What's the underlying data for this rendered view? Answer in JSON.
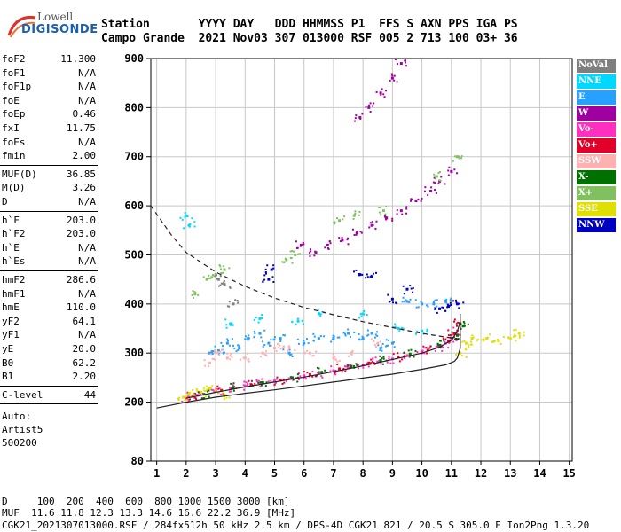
{
  "logo": {
    "line1": "Lowell",
    "line2": "DIGISONDE"
  },
  "header": {
    "line1": "Station       YYYY DAY   DDD HHMMSS P1  FFS S AXN PPS IGA PS",
    "line2": "Campo Grande  2021 Nov03 307 013000 RSF 005 2 713 100 03+ 36"
  },
  "params": [
    {
      "group": [
        {
          "k": "foF2",
          "v": "11.300"
        },
        {
          "k": "foF1",
          "v": "N/A"
        },
        {
          "k": "foF1p",
          "v": "N/A"
        },
        {
          "k": "foE",
          "v": "N/A"
        },
        {
          "k": "foEp",
          "v": "0.46"
        },
        {
          "k": "fxI",
          "v": "11.75"
        },
        {
          "k": "foEs",
          "v": "N/A"
        },
        {
          "k": "fmin",
          "v": "2.00"
        }
      ]
    },
    {
      "group": [
        {
          "k": "MUF(D)",
          "v": "36.85"
        },
        {
          "k": "M(D)",
          "v": "3.26"
        },
        {
          "k": "D",
          "v": "N/A"
        }
      ]
    },
    {
      "group": [
        {
          "k": "h`F",
          "v": "203.0"
        },
        {
          "k": "h`F2",
          "v": "203.0"
        },
        {
          "k": "h`E",
          "v": "N/A"
        },
        {
          "k": "h`Es",
          "v": "N/A"
        }
      ]
    },
    {
      "group": [
        {
          "k": "hmF2",
          "v": "286.6"
        },
        {
          "k": "hmF1",
          "v": "N/A"
        },
        {
          "k": "hmE",
          "v": "110.0"
        },
        {
          "k": "yF2",
          "v": "64.1"
        },
        {
          "k": "yF1",
          "v": "N/A"
        },
        {
          "k": "yE",
          "v": "20.0"
        },
        {
          "k": "B0",
          "v": "62.2"
        },
        {
          "k": "B1",
          "v": "2.20"
        }
      ]
    },
    {
      "group": [
        {
          "k": "C-level",
          "v": "44"
        }
      ]
    }
  ],
  "auto": {
    "l1": "Auto:",
    "l2": "Artist5",
    "l3": "500200"
  },
  "legend": [
    {
      "label": "NoVal",
      "color": "#7f7f7f"
    },
    {
      "label": "NNE",
      "color": "#00d8ff"
    },
    {
      "label": "E",
      "color": "#28a0ff"
    },
    {
      "label": "W",
      "color": "#a000a0"
    },
    {
      "label": "Vo-",
      "color": "#ff30c0"
    },
    {
      "label": "Vo+",
      "color": "#e0002a"
    },
    {
      "label": "SSW",
      "color": "#ffb0b0"
    },
    {
      "label": "X-",
      "color": "#007000"
    },
    {
      "label": "X+",
      "color": "#80c060"
    },
    {
      "label": "SSE",
      "color": "#e0e000"
    },
    {
      "label": "NNW",
      "color": "#0000c0"
    }
  ],
  "footer": {
    "line1": "D     100  200  400  600  800 1000 1500 3000 [km]",
    "line2": "MUF  11.6 11.8 12.3 13.3 14.6 16.6 22.2 36.9 [MHz]",
    "line3": "CGK21_2021307013000.RSF / 284fx512h 50 kHz 2.5 km / DPS-4D CGK21 821 / 20.5 S 305.0 E Ion2Png 1.3.20"
  },
  "chart_data": {
    "type": "scatter",
    "title": "",
    "xlabel": "",
    "ylabel": "",
    "xlim": [
      0.8,
      15.1
    ],
    "ylim": [
      80,
      900
    ],
    "xticks": [
      1,
      2,
      3,
      4,
      5,
      6,
      7,
      8,
      9,
      10,
      11,
      12,
      13,
      14,
      15
    ],
    "yticks": [
      80,
      200,
      300,
      400,
      500,
      600,
      700,
      800,
      900
    ],
    "grid": true,
    "legend_position": "right",
    "series": [
      {
        "name": "Vo-",
        "color": "#ff30c0",
        "points": [
          [
            2.0,
            208
          ],
          [
            2.4,
            214
          ],
          [
            3.0,
            222
          ],
          [
            3.5,
            228
          ],
          [
            4.0,
            233
          ],
          [
            4.5,
            238
          ],
          [
            5.0,
            243
          ],
          [
            5.5,
            248
          ],
          [
            6.0,
            254
          ],
          [
            6.5,
            259
          ],
          [
            7.0,
            264
          ],
          [
            7.5,
            270
          ],
          [
            8.0,
            276
          ],
          [
            8.5,
            282
          ],
          [
            9.0,
            288
          ],
          [
            9.5,
            295
          ],
          [
            10.0,
            302
          ],
          [
            10.5,
            312
          ],
          [
            10.8,
            320
          ],
          [
            11.0,
            330
          ],
          [
            11.2,
            345
          ]
        ]
      },
      {
        "name": "Vo+",
        "color": "#e0002a",
        "points": [
          [
            2.2,
            212
          ],
          [
            3.2,
            224
          ],
          [
            4.2,
            236
          ],
          [
            5.2,
            245
          ],
          [
            6.2,
            256
          ],
          [
            7.2,
            268
          ],
          [
            8.2,
            280
          ],
          [
            9.2,
            292
          ],
          [
            10.2,
            306
          ],
          [
            10.9,
            324
          ],
          [
            11.1,
            340
          ],
          [
            11.3,
            360
          ]
        ]
      },
      {
        "name": "X-",
        "color": "#007000",
        "points": [
          [
            2.6,
            216
          ],
          [
            3.6,
            230
          ],
          [
            4.6,
            240
          ],
          [
            5.6,
            250
          ],
          [
            6.6,
            261
          ],
          [
            7.6,
            273
          ],
          [
            8.6,
            285
          ],
          [
            9.6,
            298
          ],
          [
            10.6,
            316
          ],
          [
            11.2,
            336
          ],
          [
            11.4,
            355
          ]
        ]
      },
      {
        "name": "SSE",
        "color": "#e0e000",
        "points": [
          [
            1.9,
            210
          ],
          [
            2.1,
            218
          ],
          [
            2.5,
            220
          ],
          [
            2.8,
            228
          ],
          [
            3.3,
            215
          ],
          [
            11.3,
            300
          ],
          [
            11.5,
            320
          ],
          [
            11.7,
            330
          ],
          [
            12.2,
            330
          ],
          [
            12.6,
            325
          ],
          [
            13.0,
            330
          ],
          [
            13.3,
            340
          ]
        ]
      },
      {
        "name": "E",
        "color": "#28a0ff",
        "points": [
          [
            2.8,
            300
          ],
          [
            3.1,
            305
          ],
          [
            3.4,
            320
          ],
          [
            3.8,
            310
          ],
          [
            4.1,
            330
          ],
          [
            4.5,
            340
          ],
          [
            4.8,
            320
          ],
          [
            5.2,
            330
          ],
          [
            5.5,
            300
          ],
          [
            6.0,
            320
          ],
          [
            6.5,
            330
          ],
          [
            7.0,
            330
          ],
          [
            7.5,
            340
          ],
          [
            8.0,
            330
          ],
          [
            8.3,
            340
          ],
          [
            8.6,
            310
          ],
          [
            9.0,
            320
          ],
          [
            9.5,
            405
          ],
          [
            10.0,
            400
          ],
          [
            10.4,
            400
          ],
          [
            10.8,
            405
          ]
        ]
      },
      {
        "name": "NNE",
        "color": "#00d8ff",
        "points": [
          [
            2.0,
            580
          ],
          [
            2.1,
            560
          ],
          [
            3.5,
            360
          ],
          [
            4.5,
            370
          ],
          [
            5.8,
            365
          ],
          [
            6.5,
            380
          ],
          [
            8.0,
            380
          ],
          [
            9.2,
            350
          ],
          [
            10.0,
            345
          ]
        ]
      },
      {
        "name": "W",
        "color": "#a000a0",
        "points": [
          [
            5.9,
            520
          ],
          [
            6.4,
            505
          ],
          [
            6.8,
            520
          ],
          [
            7.3,
            530
          ],
          [
            7.8,
            545
          ],
          [
            8.3,
            560
          ],
          [
            8.8,
            575
          ],
          [
            9.3,
            590
          ],
          [
            9.8,
            610
          ],
          [
            10.3,
            630
          ],
          [
            10.6,
            650
          ],
          [
            11.0,
            670
          ],
          [
            7.9,
            780
          ],
          [
            8.2,
            800
          ],
          [
            8.6,
            830
          ],
          [
            9.0,
            860
          ],
          [
            9.3,
            890
          ]
        ]
      },
      {
        "name": "NNW",
        "color": "#0000c0",
        "points": [
          [
            4.8,
            450
          ],
          [
            4.9,
            470
          ],
          [
            7.9,
            460
          ],
          [
            8.3,
            455
          ],
          [
            9.0,
            410
          ],
          [
            9.5,
            430
          ],
          [
            10.6,
            390
          ],
          [
            10.9,
            395
          ],
          [
            11.2,
            400
          ]
        ]
      },
      {
        "name": "SSW",
        "color": "#ffb0b0",
        "points": [
          [
            2.8,
            280
          ],
          [
            3.0,
            300
          ],
          [
            3.4,
            290
          ],
          [
            4.0,
            290
          ],
          [
            4.6,
            300
          ],
          [
            5.0,
            310
          ],
          [
            5.5,
            310
          ],
          [
            6.2,
            300
          ],
          [
            7.0,
            290
          ],
          [
            7.6,
            300
          ],
          [
            8.5,
            320
          ]
        ]
      },
      {
        "name": "X+",
        "color": "#80c060",
        "points": [
          [
            2.3,
            420
          ],
          [
            2.7,
            450
          ],
          [
            3.0,
            460
          ],
          [
            3.3,
            470
          ],
          [
            5.4,
            490
          ],
          [
            5.7,
            500
          ],
          [
            7.2,
            570
          ],
          [
            7.7,
            580
          ],
          [
            8.7,
            590
          ],
          [
            10.5,
            660
          ],
          [
            11.2,
            700
          ]
        ]
      },
      {
        "name": "NoVal",
        "color": "#7f7f7f",
        "points": [
          [
            3.1,
            450
          ],
          [
            3.3,
            440
          ],
          [
            3.6,
            400
          ]
        ]
      }
    ],
    "curves": [
      {
        "name": "profile",
        "style": "solid",
        "points": [
          [
            1.0,
            188
          ],
          [
            2.0,
            200
          ],
          [
            3.0,
            210
          ],
          [
            4.0,
            218
          ],
          [
            5.0,
            225
          ],
          [
            6.0,
            233
          ],
          [
            7.0,
            241
          ],
          [
            8.0,
            249
          ],
          [
            9.0,
            257
          ],
          [
            10.0,
            267
          ],
          [
            10.8,
            276
          ],
          [
            11.1,
            283
          ],
          [
            11.2,
            290
          ],
          [
            11.3,
            310
          ],
          [
            11.3,
            340
          ],
          [
            11.3,
            380
          ]
        ]
      },
      {
        "name": "trace",
        "style": "solid",
        "points": [
          [
            2.0,
            208
          ],
          [
            3.0,
            220
          ],
          [
            4.0,
            231
          ],
          [
            5.0,
            241
          ],
          [
            6.0,
            251
          ],
          [
            7.0,
            262
          ],
          [
            8.0,
            274
          ],
          [
            9.0,
            287
          ],
          [
            10.0,
            300
          ],
          [
            10.6,
            312
          ],
          [
            11.0,
            326
          ],
          [
            11.2,
            344
          ],
          [
            11.3,
            365
          ]
        ]
      },
      {
        "name": "MUF",
        "style": "dashed",
        "points": [
          [
            0.8,
            600
          ],
          [
            1.5,
            540
          ],
          [
            2.0,
            505
          ],
          [
            3.0,
            465
          ],
          [
            4.0,
            436
          ],
          [
            5.0,
            412
          ],
          [
            6.0,
            393
          ],
          [
            7.0,
            378
          ],
          [
            8.0,
            364
          ],
          [
            9.0,
            352
          ],
          [
            10.0,
            340
          ],
          [
            11.3,
            328
          ]
        ]
      }
    ]
  }
}
